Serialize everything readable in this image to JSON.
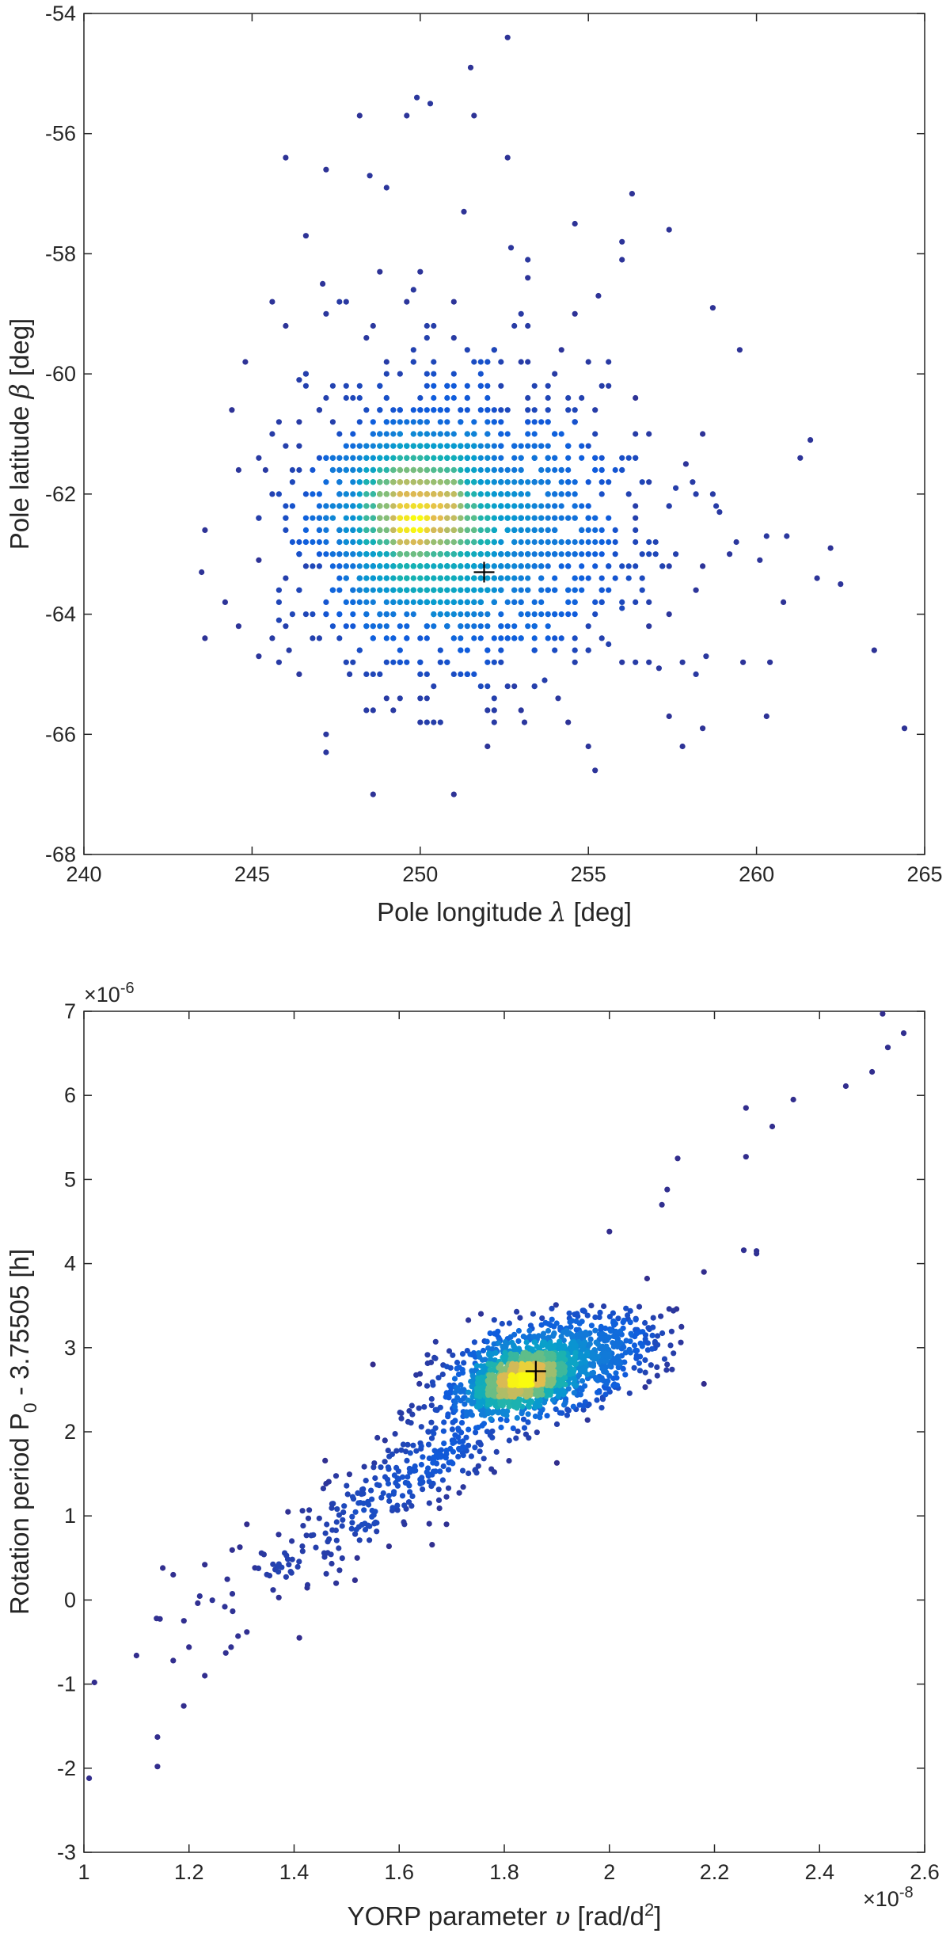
{
  "chart_data": [
    {
      "type": "scatter",
      "name": "pole-plot",
      "xlabel": "Pole longitude",
      "xlabel_symbol": "λ",
      "xlabel_unit": "[deg]",
      "ylabel": "Pole latitude",
      "ylabel_symbol": "β",
      "ylabel_unit": "[deg]",
      "xlim": [
        240,
        265
      ],
      "ylim": [
        -68,
        -54
      ],
      "xticks": [
        240,
        245,
        250,
        255,
        260,
        265
      ],
      "xtick_labels": [
        "240",
        "245",
        "250",
        "255",
        "260",
        "265"
      ],
      "yticks": [
        -54,
        -56,
        -58,
        -60,
        -62,
        -64,
        -66,
        -68
      ],
      "ytick_labels": [
        "-54",
        "-56",
        "-58",
        "-60",
        "-62",
        "-64",
        "-66",
        "-68"
      ],
      "colormap": "parula (density)",
      "grid": false,
      "marker": {
        "x": 251.9,
        "y": -63.3,
        "symbol": "+",
        "color": "#000000"
      },
      "clusters": [
        {
          "cx": 249.6,
          "cy": -62.4,
          "sx": 1.2,
          "sy": 0.75,
          "n": 900
        },
        {
          "cx": 251.2,
          "cy": -62.7,
          "sx": 2.0,
          "sy": 1.0,
          "n": 1000
        },
        {
          "cx": 251.5,
          "cy": -62.2,
          "sx": 2.8,
          "sy": 1.6,
          "n": 500
        }
      ],
      "x_grid_step": 0.2,
      "y_grid_step": 0.2,
      "outliers": [
        [
          252.6,
          -54.4
        ],
        [
          251.5,
          -54.9
        ],
        [
          249.9,
          -55.4
        ],
        [
          251.6,
          -55.7
        ],
        [
          248.2,
          -55.7
        ],
        [
          249.6,
          -55.7
        ],
        [
          250.3,
          -55.5
        ],
        [
          248.5,
          -56.7
        ],
        [
          247.2,
          -56.6
        ],
        [
          249.0,
          -56.9
        ],
        [
          251.3,
          -57.3
        ],
        [
          256.3,
          -57.0
        ],
        [
          246.6,
          -57.7
        ],
        [
          257.4,
          -57.6
        ],
        [
          252.7,
          -57.9
        ],
        [
          258.7,
          -58.9
        ],
        [
          259.5,
          -59.6
        ],
        [
          254.6,
          -57.5
        ],
        [
          256.0,
          -58.1
        ],
        [
          247.1,
          -58.5
        ],
        [
          246.4,
          -60.1
        ],
        [
          245.8,
          -60.8
        ],
        [
          258.1,
          -61.8
        ],
        [
          261.6,
          -61.1
        ],
        [
          261.3,
          -61.4
        ],
        [
          243.5,
          -63.3
        ],
        [
          244.2,
          -63.8
        ],
        [
          245.2,
          -63.1
        ],
        [
          245.8,
          -64.1
        ],
        [
          245.2,
          -64.7
        ],
        [
          246.1,
          -64.6
        ],
        [
          247.2,
          -66.3
        ],
        [
          255.0,
          -66.2
        ],
        [
          255.2,
          -66.6
        ],
        [
          257.4,
          -65.7
        ],
        [
          258.4,
          -65.9
        ],
        [
          260.3,
          -65.7
        ],
        [
          263.5,
          -64.6
        ],
        [
          264.4,
          -65.9
        ],
        [
          262.5,
          -63.5
        ],
        [
          262.2,
          -62.9
        ],
        [
          261.8,
          -63.4
        ],
        [
          260.9,
          -62.7
        ],
        [
          260.3,
          -62.7
        ],
        [
          259.6,
          -64.8
        ],
        [
          260.4,
          -64.8
        ],
        [
          258.5,
          -64.7
        ],
        [
          257.8,
          -64.8
        ],
        [
          257.1,
          -64.9
        ],
        [
          256.8,
          -64.2
        ],
        [
          256.0,
          -63.9
        ],
        [
          255.6,
          -64.5
        ],
        [
          258.7,
          -62.0
        ],
        [
          258.9,
          -62.3
        ],
        [
          259.2,
          -63.0
        ],
        [
          260.1,
          -63.1
        ],
        [
          257.6,
          -61.9
        ],
        [
          257.9,
          -61.5
        ],
        [
          253.7,
          -65.1
        ],
        [
          254.1,
          -65.4
        ],
        [
          250.4,
          -65.8
        ],
        [
          249.4,
          -65.4
        ],
        [
          248.6,
          -65.0
        ],
        [
          247.9,
          -65.0
        ],
        [
          246.6,
          -64.0
        ],
        [
          253.1,
          -65.8
        ],
        [
          252.2,
          -65.6
        ],
        [
          247.8,
          -58.8
        ],
        [
          248.8,
          -58.3
        ],
        [
          250.0,
          -58.3
        ],
        [
          253.2,
          -58.1
        ],
        [
          255.3,
          -58.7
        ]
      ]
    },
    {
      "type": "scatter",
      "name": "yorp-plot",
      "xlabel": "YORP parameter",
      "xlabel_symbol": "υ",
      "xlabel_unit_pre": "[rad/d",
      "xlabel_unit_sup": "2",
      "xlabel_unit_post": "]",
      "ylabel_pre": "Rotation period P",
      "ylabel_sub": "0",
      "ylabel_post": " - 3.75505 [h]",
      "xlim": [
        1e-08,
        2.6e-08
      ],
      "ylim": [
        -3e-06,
        7e-06
      ],
      "xticks": [
        1,
        1.2,
        1.4,
        1.6,
        1.8,
        2,
        2.2,
        2.4,
        2.6
      ],
      "xtick_labels": [
        "1",
        "1.2",
        "1.4",
        "1.6",
        "1.8",
        "2",
        "2.2",
        "2.4",
        "2.6"
      ],
      "yticks": [
        -3,
        -2,
        -1,
        0,
        1,
        2,
        3,
        4,
        5,
        6,
        7
      ],
      "ytick_labels": [
        "-3",
        "-2",
        "-1",
        "0",
        "1",
        "2",
        "3",
        "4",
        "5",
        "6",
        "7"
      ],
      "x_multiplier": {
        "base": "×10",
        "exp": "-8"
      },
      "y_multiplier": {
        "base": "×10",
        "exp": "-6"
      },
      "colormap": "parula (density)",
      "grid": false,
      "marker": {
        "x": 1.86,
        "y": 2.72,
        "symbol": "+",
        "color": "#000000"
      },
      "clusters": [
        {
          "cx": 1.83,
          "cy": 2.6,
          "sx": 0.045,
          "sy": 0.14,
          "rho": 0.55,
          "n": 900
        },
        {
          "cx": 1.88,
          "cy": 2.8,
          "sx": 0.1,
          "sy": 0.28,
          "rho": 0.45,
          "n": 1100
        },
        {
          "cx": 1.65,
          "cy": 1.6,
          "sx": 0.17,
          "sy": 0.75,
          "rho": 0.92,
          "n": 420
        }
      ],
      "outliers": [
        [
          2.52,
          6.97
        ],
        [
          2.56,
          6.74
        ],
        [
          2.53,
          6.57
        ],
        [
          2.5,
          6.28
        ],
        [
          2.45,
          6.11
        ],
        [
          2.35,
          5.95
        ],
        [
          2.31,
          5.63
        ],
        [
          2.26,
          5.85
        ],
        [
          2.26,
          5.27
        ],
        [
          2.13,
          5.25
        ],
        [
          2.11,
          4.88
        ],
        [
          2.1,
          4.7
        ],
        [
          2.28,
          4.15
        ],
        [
          2.28,
          4.12
        ],
        [
          2.18,
          3.9
        ],
        [
          2.18,
          2.57
        ],
        [
          2.0,
          4.38
        ],
        [
          1.01,
          -2.12
        ],
        [
          1.02,
          -0.98
        ],
        [
          1.1,
          -0.66
        ],
        [
          1.14,
          -1.63
        ],
        [
          1.14,
          -1.98
        ],
        [
          1.15,
          0.38
        ],
        [
          1.17,
          0.3
        ],
        [
          1.17,
          -0.72
        ],
        [
          1.19,
          -1.26
        ],
        [
          1.2,
          -0.56
        ],
        [
          1.23,
          -0.9
        ],
        [
          1.23,
          0.42
        ],
        [
          1.27,
          -0.63
        ],
        [
          1.28,
          -0.56
        ],
        [
          1.31,
          -0.38
        ],
        [
          1.31,
          0.9
        ],
        [
          1.36,
          0.12
        ],
        [
          1.41,
          -0.45
        ],
        [
          1.55,
          2.8
        ],
        [
          1.61,
          0.9
        ],
        [
          1.69,
          0.9
        ],
        [
          1.9,
          1.63
        ],
        [
          1.52,
          0.5
        ],
        [
          1.48,
          0.2
        ]
      ]
    }
  ]
}
